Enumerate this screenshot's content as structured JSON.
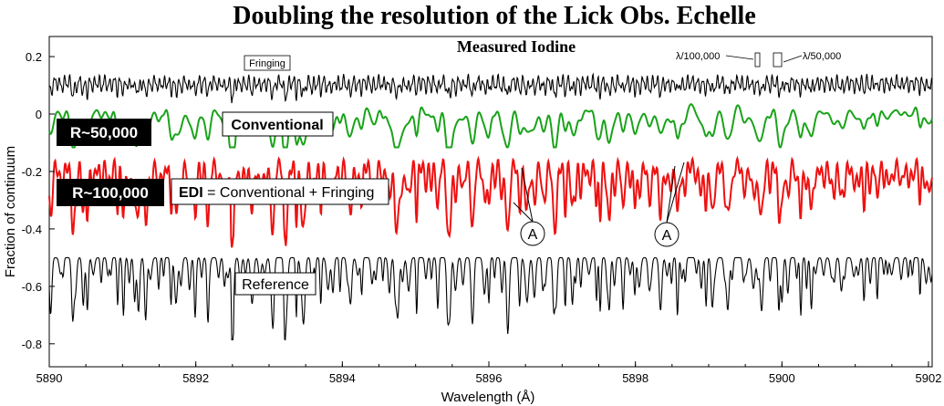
{
  "chart_data": {
    "type": "line",
    "title": "Doubling the resolution of the Lick Obs. Echelle",
    "subtitle": "Measured Iodine",
    "xlabel": "Wavelength (Å)",
    "ylabel": "Fraction of continuum",
    "xlim": [
      5890,
      5902.05
    ],
    "ylim": [
      -0.88,
      0.27
    ],
    "x_ticks": [
      5890,
      5892,
      5894,
      5896,
      5898,
      5900,
      5902
    ],
    "x_tick_labels": [
      "5890",
      "5892",
      "5894",
      "5896",
      "5898",
      "5900",
      "5902"
    ],
    "y_ticks": [
      0.2,
      0,
      -0.2,
      -0.4,
      -0.6,
      -0.8
    ],
    "y_tick_labels": [
      "0.2",
      "0",
      "-0.2",
      "-0.4",
      "-0.6",
      "-0.8"
    ],
    "grid": false,
    "series": [
      {
        "key": "fringing",
        "color": "#000000",
        "baseline": 0.14,
        "depth": 0.04
      },
      {
        "key": "conventional",
        "color": "#1aa31a",
        "baseline": 0.04,
        "depth": 0.12
      },
      {
        "key": "edi",
        "color": "#ee1111",
        "baseline": -0.18,
        "depth": 0.2
      },
      {
        "key": "reference",
        "color": "#000000",
        "baseline": -0.5,
        "depth": 0.22
      }
    ],
    "annotations": {
      "fringing": "Fringing",
      "conventional": "Conventional",
      "edi_bold": "EDI",
      "edi_rest": " = Conventional + Fringing",
      "reference": "Reference",
      "r50": "R~50,000",
      "r100": "R~100,000",
      "marker": "A",
      "lambda100k": "λ/100,000",
      "lambda50k": "λ/50,000"
    }
  }
}
